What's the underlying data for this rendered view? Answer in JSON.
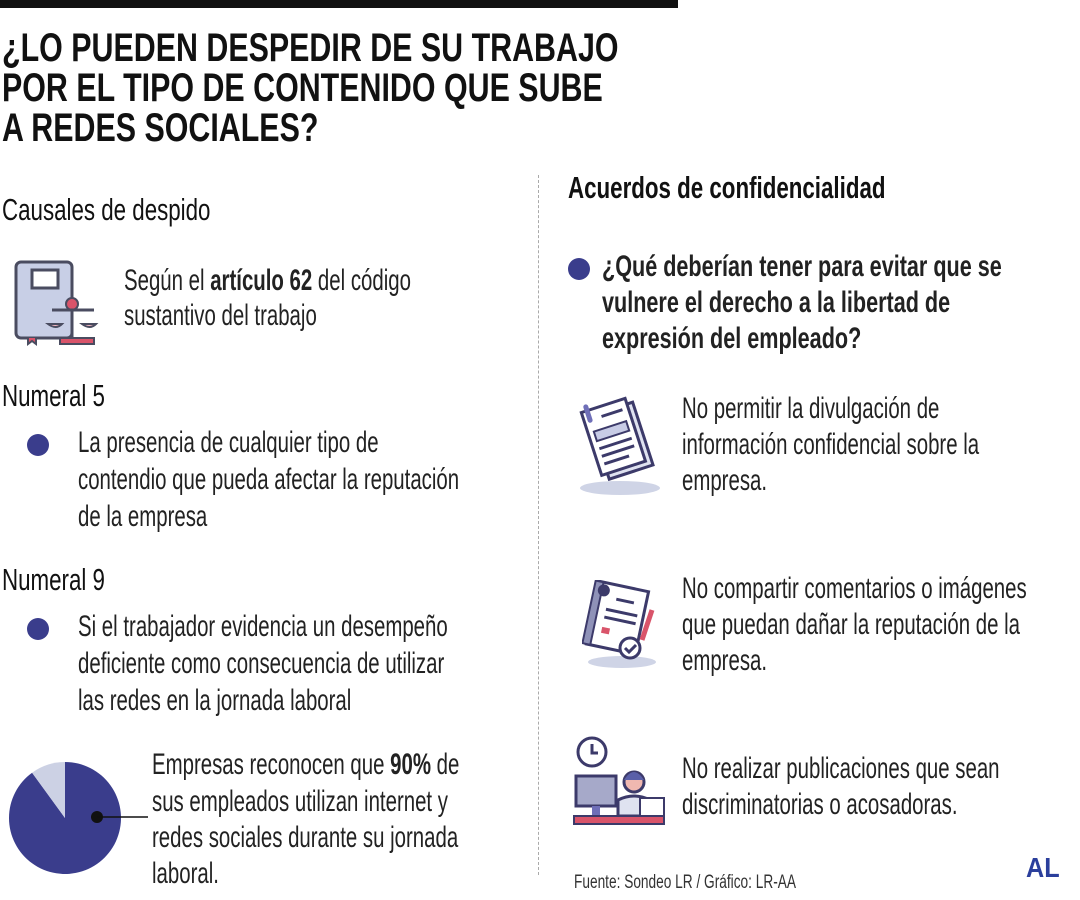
{
  "title_lines": [
    "¿LO PUEDEN DESPEDIR DE SU TRABAJO",
    "POR EL TIPO DE CONTENIDO QUE SUBE",
    "A REDES SOCIALES?"
  ],
  "left": {
    "heading": "Causales de despido",
    "article": {
      "l1_pre": "Según el ",
      "l1_bold": "artículo 62",
      "l1_post": " del código",
      "l2": "sustantivo del trabajo"
    },
    "numeral5": {
      "label": "Numeral 5",
      "lines": [
        "La presencia de cualquier tipo de",
        "contendio que pueda afectar la reputación",
        "de la empresa"
      ]
    },
    "numeral9": {
      "label": "Numeral 9",
      "lines": [
        "Si el trabajador evidencia un desempeño",
        "deficiente como consecuencia de utilizar",
        "las redes en la jornada laboral"
      ]
    },
    "stat": {
      "l1_pre": "Empresas reconocen que ",
      "l1_bold": "90%",
      "l1_post": " de",
      "l2": "sus empleados utilizan internet y",
      "l3": "redes sociales durante su jornada",
      "l4": "laboral."
    }
  },
  "chart_data": {
    "type": "pie",
    "values": [
      90,
      10
    ],
    "colors": [
      "#3a3d8c",
      "#ccd1e4"
    ]
  },
  "right": {
    "heading": "Acuerdos de confidencialidad",
    "question_lines": [
      "¿Qué deberían tener para evitar que se",
      "vulnere el derecho a la libertad de",
      "expresión del empleado?"
    ],
    "items": [
      {
        "icon": "documents-icon",
        "lines": [
          "No  permitir la divulgación de",
          "información confidencial sobre la",
          "empresa."
        ]
      },
      {
        "icon": "signed-contract-icon",
        "lines": [
          "No compartir comentarios o imágenes",
          "que puedan dañar la reputación de la",
          "empresa."
        ]
      },
      {
        "icon": "employee-desk-icon",
        "lines": [
          "No realizar publicaciones que sean",
          "discriminatorias o acosadoras."
        ]
      }
    ],
    "source": "Fuente: Sondeo LR / Gráfico: LR-AA"
  },
  "logo": "AL",
  "colors": {
    "accent": "#3a3d8c",
    "light": "#ccd1e4",
    "red": "#d9546a"
  }
}
